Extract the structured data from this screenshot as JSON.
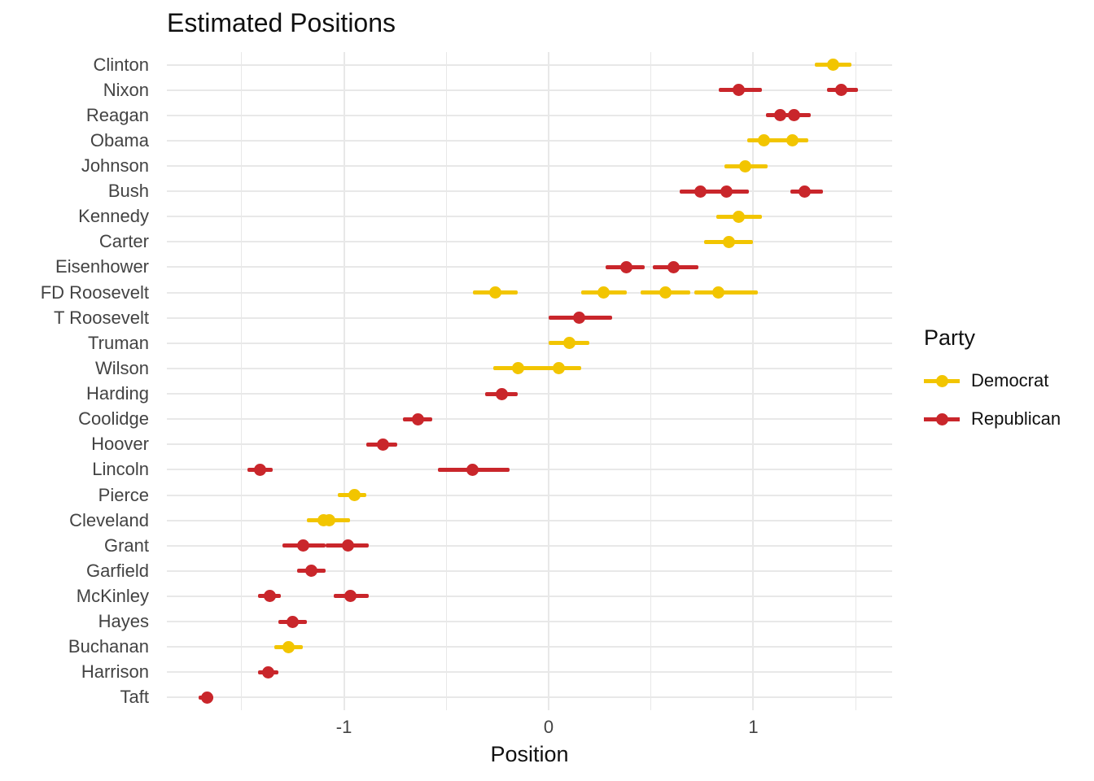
{
  "chart_data": {
    "type": "scatter",
    "subtype": "pointrange",
    "title": "Estimated Positions",
    "xlabel": "Position",
    "ylabel": "",
    "xlim": [
      -1.865,
      1.678
    ],
    "x_ticks": [
      -1,
      0,
      1
    ],
    "x_tick_labels": [
      "-1",
      "0",
      "1"
    ],
    "x_minor_ticks": [
      -1.5,
      -0.5,
      0.5,
      1.5
    ],
    "grid": "major-and-minor",
    "legend": {
      "title": "Party",
      "position": "right",
      "entries": [
        {
          "label": "Democrat",
          "color": "#f2c500"
        },
        {
          "label": "Republican",
          "color": "#c9262b"
        }
      ]
    },
    "series": [
      {
        "president": "Clinton",
        "party": "Democrat",
        "estimates": [
          {
            "est": 1.39,
            "lo": 1.3,
            "hi": 1.48
          }
        ]
      },
      {
        "president": "Nixon",
        "party": "Republican",
        "estimates": [
          {
            "est": 0.93,
            "lo": 0.83,
            "hi": 1.04
          },
          {
            "est": 1.43,
            "lo": 1.36,
            "hi": 1.51
          }
        ]
      },
      {
        "president": "Reagan",
        "party": "Republican",
        "estimates": [
          {
            "est": 1.13,
            "lo": 1.06,
            "hi": 1.21
          },
          {
            "est": 1.2,
            "lo": 1.13,
            "hi": 1.28
          }
        ]
      },
      {
        "president": "Obama",
        "party": "Democrat",
        "estimates": [
          {
            "est": 1.05,
            "lo": 0.97,
            "hi": 1.14
          },
          {
            "est": 1.19,
            "lo": 1.11,
            "hi": 1.27
          }
        ]
      },
      {
        "president": "Johnson",
        "party": "Democrat",
        "estimates": [
          {
            "est": 0.96,
            "lo": 0.86,
            "hi": 1.07
          }
        ]
      },
      {
        "president": "Bush",
        "party": "Republican",
        "estimates": [
          {
            "est": 0.74,
            "lo": 0.64,
            "hi": 0.85
          },
          {
            "est": 0.87,
            "lo": 0.77,
            "hi": 0.98
          },
          {
            "est": 1.25,
            "lo": 1.18,
            "hi": 1.34
          }
        ]
      },
      {
        "president": "Kennedy",
        "party": "Democrat",
        "estimates": [
          {
            "est": 0.93,
            "lo": 0.82,
            "hi": 1.04
          }
        ]
      },
      {
        "president": "Carter",
        "party": "Democrat",
        "estimates": [
          {
            "est": 0.88,
            "lo": 0.76,
            "hi": 1.0
          }
        ]
      },
      {
        "president": "Eisenhower",
        "party": "Republican",
        "estimates": [
          {
            "est": 0.38,
            "lo": 0.28,
            "hi": 0.47
          },
          {
            "est": 0.61,
            "lo": 0.51,
            "hi": 0.73
          }
        ]
      },
      {
        "president": "FD Roosevelt",
        "party": "Democrat",
        "estimates": [
          {
            "est": -0.26,
            "lo": -0.37,
            "hi": -0.15
          },
          {
            "est": 0.27,
            "lo": 0.16,
            "hi": 0.38
          },
          {
            "est": 0.57,
            "lo": 0.45,
            "hi": 0.69
          },
          {
            "est": 0.83,
            "lo": 0.71,
            "hi": 1.02
          }
        ]
      },
      {
        "president": "T Roosevelt",
        "party": "Republican",
        "estimates": [
          {
            "est": 0.15,
            "lo": 0.0,
            "hi": 0.31
          }
        ]
      },
      {
        "president": "Truman",
        "party": "Democrat",
        "estimates": [
          {
            "est": 0.1,
            "lo": 0.0,
            "hi": 0.2
          }
        ]
      },
      {
        "president": "Wilson",
        "party": "Democrat",
        "estimates": [
          {
            "est": -0.15,
            "lo": -0.27,
            "hi": -0.03
          },
          {
            "est": 0.05,
            "lo": -0.07,
            "hi": 0.16
          }
        ]
      },
      {
        "president": "Harding",
        "party": "Republican",
        "estimates": [
          {
            "est": -0.23,
            "lo": -0.31,
            "hi": -0.15
          }
        ]
      },
      {
        "president": "Coolidge",
        "party": "Republican",
        "estimates": [
          {
            "est": -0.64,
            "lo": -0.71,
            "hi": -0.57
          }
        ]
      },
      {
        "president": "Hoover",
        "party": "Republican",
        "estimates": [
          {
            "est": -0.81,
            "lo": -0.89,
            "hi": -0.74
          }
        ]
      },
      {
        "president": "Lincoln",
        "party": "Republican",
        "estimates": [
          {
            "est": -1.41,
            "lo": -1.47,
            "hi": -1.35
          },
          {
            "est": -0.37,
            "lo": -0.54,
            "hi": -0.19
          }
        ]
      },
      {
        "president": "Pierce",
        "party": "Democrat",
        "estimates": [
          {
            "est": -0.95,
            "lo": -1.03,
            "hi": -0.89
          }
        ]
      },
      {
        "president": "Cleveland",
        "party": "Democrat",
        "estimates": [
          {
            "est": -1.1,
            "lo": -1.18,
            "hi": -1.02
          },
          {
            "est": -1.07,
            "lo": -1.13,
            "hi": -0.97
          }
        ]
      },
      {
        "president": "Grant",
        "party": "Republican",
        "estimates": [
          {
            "est": -1.2,
            "lo": -1.3,
            "hi": -1.09
          },
          {
            "est": -0.98,
            "lo": -1.09,
            "hi": -0.88
          }
        ]
      },
      {
        "president": "Garfield",
        "party": "Republican",
        "estimates": [
          {
            "est": -1.16,
            "lo": -1.23,
            "hi": -1.09
          }
        ]
      },
      {
        "president": "McKinley",
        "party": "Republican",
        "estimates": [
          {
            "est": -1.36,
            "lo": -1.42,
            "hi": -1.31
          },
          {
            "est": -0.97,
            "lo": -1.05,
            "hi": -0.88
          }
        ]
      },
      {
        "president": "Hayes",
        "party": "Republican",
        "estimates": [
          {
            "est": -1.25,
            "lo": -1.32,
            "hi": -1.18
          }
        ]
      },
      {
        "president": "Buchanan",
        "party": "Democrat",
        "estimates": [
          {
            "est": -1.27,
            "lo": -1.34,
            "hi": -1.2
          }
        ]
      },
      {
        "president": "Harrison",
        "party": "Republican",
        "estimates": [
          {
            "est": -1.37,
            "lo": -1.42,
            "hi": -1.32
          }
        ]
      },
      {
        "president": "Taft",
        "party": "Republican",
        "estimates": [
          {
            "est": -1.67,
            "lo": -1.71,
            "hi": -1.64
          }
        ]
      }
    ]
  }
}
